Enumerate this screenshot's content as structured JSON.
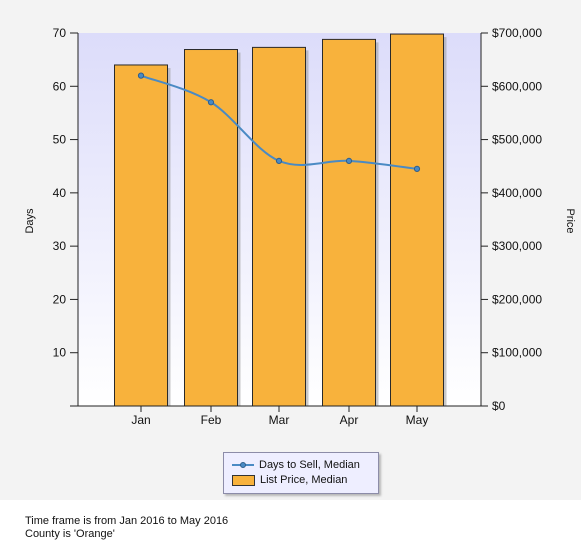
{
  "chart_data": {
    "type": "bar",
    "categories": [
      "Jan",
      "Feb",
      "Mar",
      "Apr",
      "May"
    ],
    "series": [
      {
        "name": "List Price, Median",
        "type": "bar",
        "axis": "right",
        "values": [
          640000,
          669000,
          673000,
          688000,
          698000
        ],
        "color": "#f8b23c"
      },
      {
        "name": "Days to Sell, Median",
        "type": "line",
        "axis": "left",
        "values": [
          62,
          57,
          46,
          46,
          44.5
        ],
        "color": "#4a8ac4"
      }
    ],
    "ylabel": "Days",
    "ylim": [
      0,
      70
    ],
    "yticks": [
      "10",
      "20",
      "30",
      "40",
      "50",
      "60",
      "70"
    ],
    "y2label": "Price",
    "y2lim": [
      0,
      700000
    ],
    "y2ticks": [
      "$0",
      "$100,000",
      "$200,000",
      "$300,000",
      "$400,000",
      "$500,000",
      "$600,000",
      "$700,000"
    ],
    "legend_placement": "bottom"
  },
  "footer": {
    "line1": "Time frame is from Jan 2016 to May 2016",
    "line2": "County is 'Orange'"
  },
  "colors": {
    "bar_fill": "#f8b23c",
    "line": "#4a8ac4",
    "plot_bg_top": "#dcdcfa",
    "plot_bg_bottom": "#ffffff",
    "panel_bg": "#f3f3f3"
  }
}
